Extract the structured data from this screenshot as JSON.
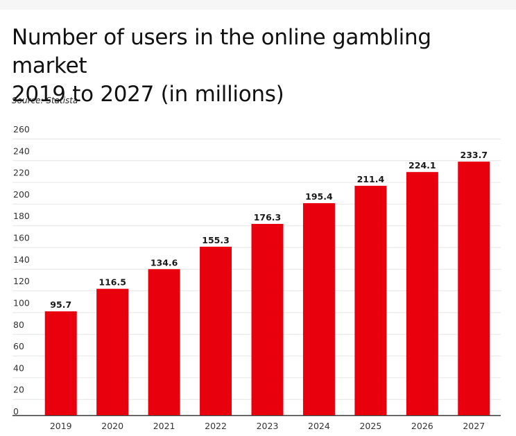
{
  "title_lines": [
    "Number of users in the online gambling market",
    "2019 to 2027 (in millions)"
  ],
  "source": "Source: Statista",
  "colors": {
    "bar": "#e8000d",
    "background": "#ffffff"
  },
  "chart_data": {
    "type": "bar",
    "title": "Number of users in the online gambling market 2019 to 2027 (in millions)",
    "xlabel": "",
    "ylabel": "",
    "categories": [
      "2019",
      "2020",
      "2021",
      "2022",
      "2023",
      "2024",
      "2025",
      "2026",
      "2027"
    ],
    "values": [
      95.7,
      116.5,
      134.6,
      155.3,
      176.3,
      195.4,
      211.4,
      224.1,
      233.7
    ],
    "value_labels": [
      "95.7",
      "116.5",
      "134.6",
      "155.3",
      "176.3",
      "195.4",
      "211.4",
      "224.1",
      "233.7"
    ],
    "ylim": [
      0,
      260
    ],
    "yticks": [
      0,
      20,
      40,
      60,
      80,
      100,
      120,
      140,
      160,
      180,
      200,
      220,
      240,
      260
    ],
    "ytick_labels": [
      "0",
      "20",
      "40",
      "60",
      "80",
      "100",
      "120",
      "140",
      "160",
      "180",
      "200",
      "220",
      "240",
      "260"
    ],
    "grid": true,
    "legend": "none"
  }
}
